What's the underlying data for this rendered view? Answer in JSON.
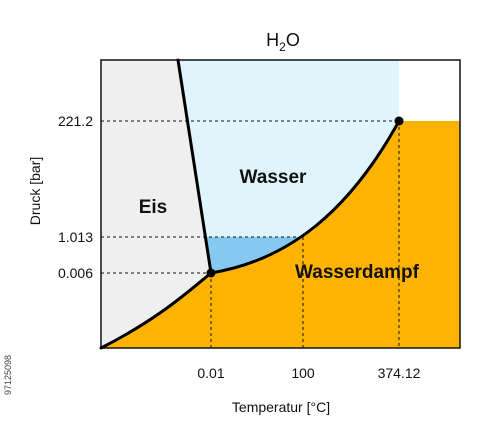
{
  "chart_data": {
    "type": "phase-diagram",
    "title": "H",
    "title_sub": "2",
    "title_suffix": "O",
    "xlabel": "Temperatur [°C]",
    "ylabel": "Druck [bar]",
    "x_ticks": [
      "0.01",
      "100",
      "374.12"
    ],
    "y_ticks": [
      "0.006",
      "1.013",
      "221.2"
    ],
    "regions": [
      {
        "label": "Eis",
        "color": "#efefef"
      },
      {
        "label": "Wasser",
        "color": "#dff4fb"
      },
      {
        "label": "Wasserdampf",
        "color": "#fdb300"
      }
    ],
    "superheated_color": "#86c9f0",
    "points": [
      {
        "name": "triple-point",
        "temperature_c": 0.01,
        "pressure_bar": 0.006
      },
      {
        "name": "critical-point",
        "temperature_c": 374.12,
        "pressure_bar": 221.2
      }
    ],
    "reference_lines": [
      {
        "pressure_bar": 1.013,
        "temperature_c": 100
      }
    ],
    "grid": false
  },
  "watermark": "97125098"
}
